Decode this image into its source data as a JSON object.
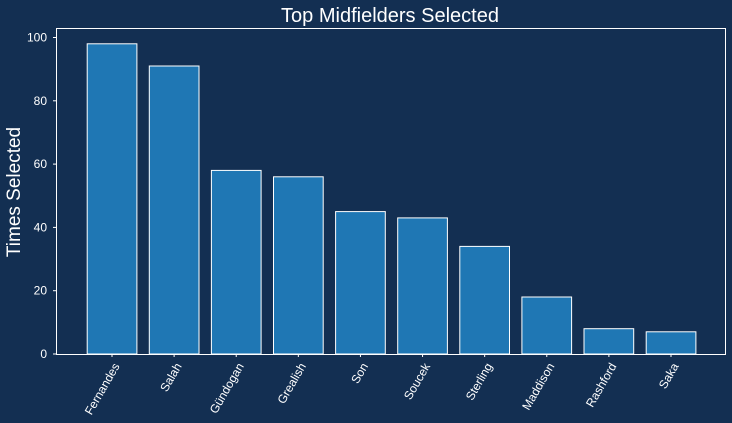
{
  "chart_data": {
    "type": "bar",
    "title": "Top Midfielders Selected",
    "xlabel": "",
    "ylabel": "Times Selected",
    "categories": [
      "Fernandes",
      "Salah",
      "Gündogan",
      "Grealish",
      "Son",
      "Soucek",
      "Sterling",
      "Maddison",
      "Rashford",
      "Saka"
    ],
    "values": [
      98,
      91,
      58,
      56,
      45,
      43,
      34,
      18,
      8,
      7
    ],
    "ylim": [
      0,
      103
    ],
    "yticks": [
      "0",
      "20",
      "40",
      "60",
      "80",
      "100"
    ],
    "grid": false,
    "legend": "none",
    "colors": {
      "background": "#132f52",
      "bar": "#1f77b4",
      "bar_edge": "#ffffff",
      "text": "#ffffff"
    }
  }
}
